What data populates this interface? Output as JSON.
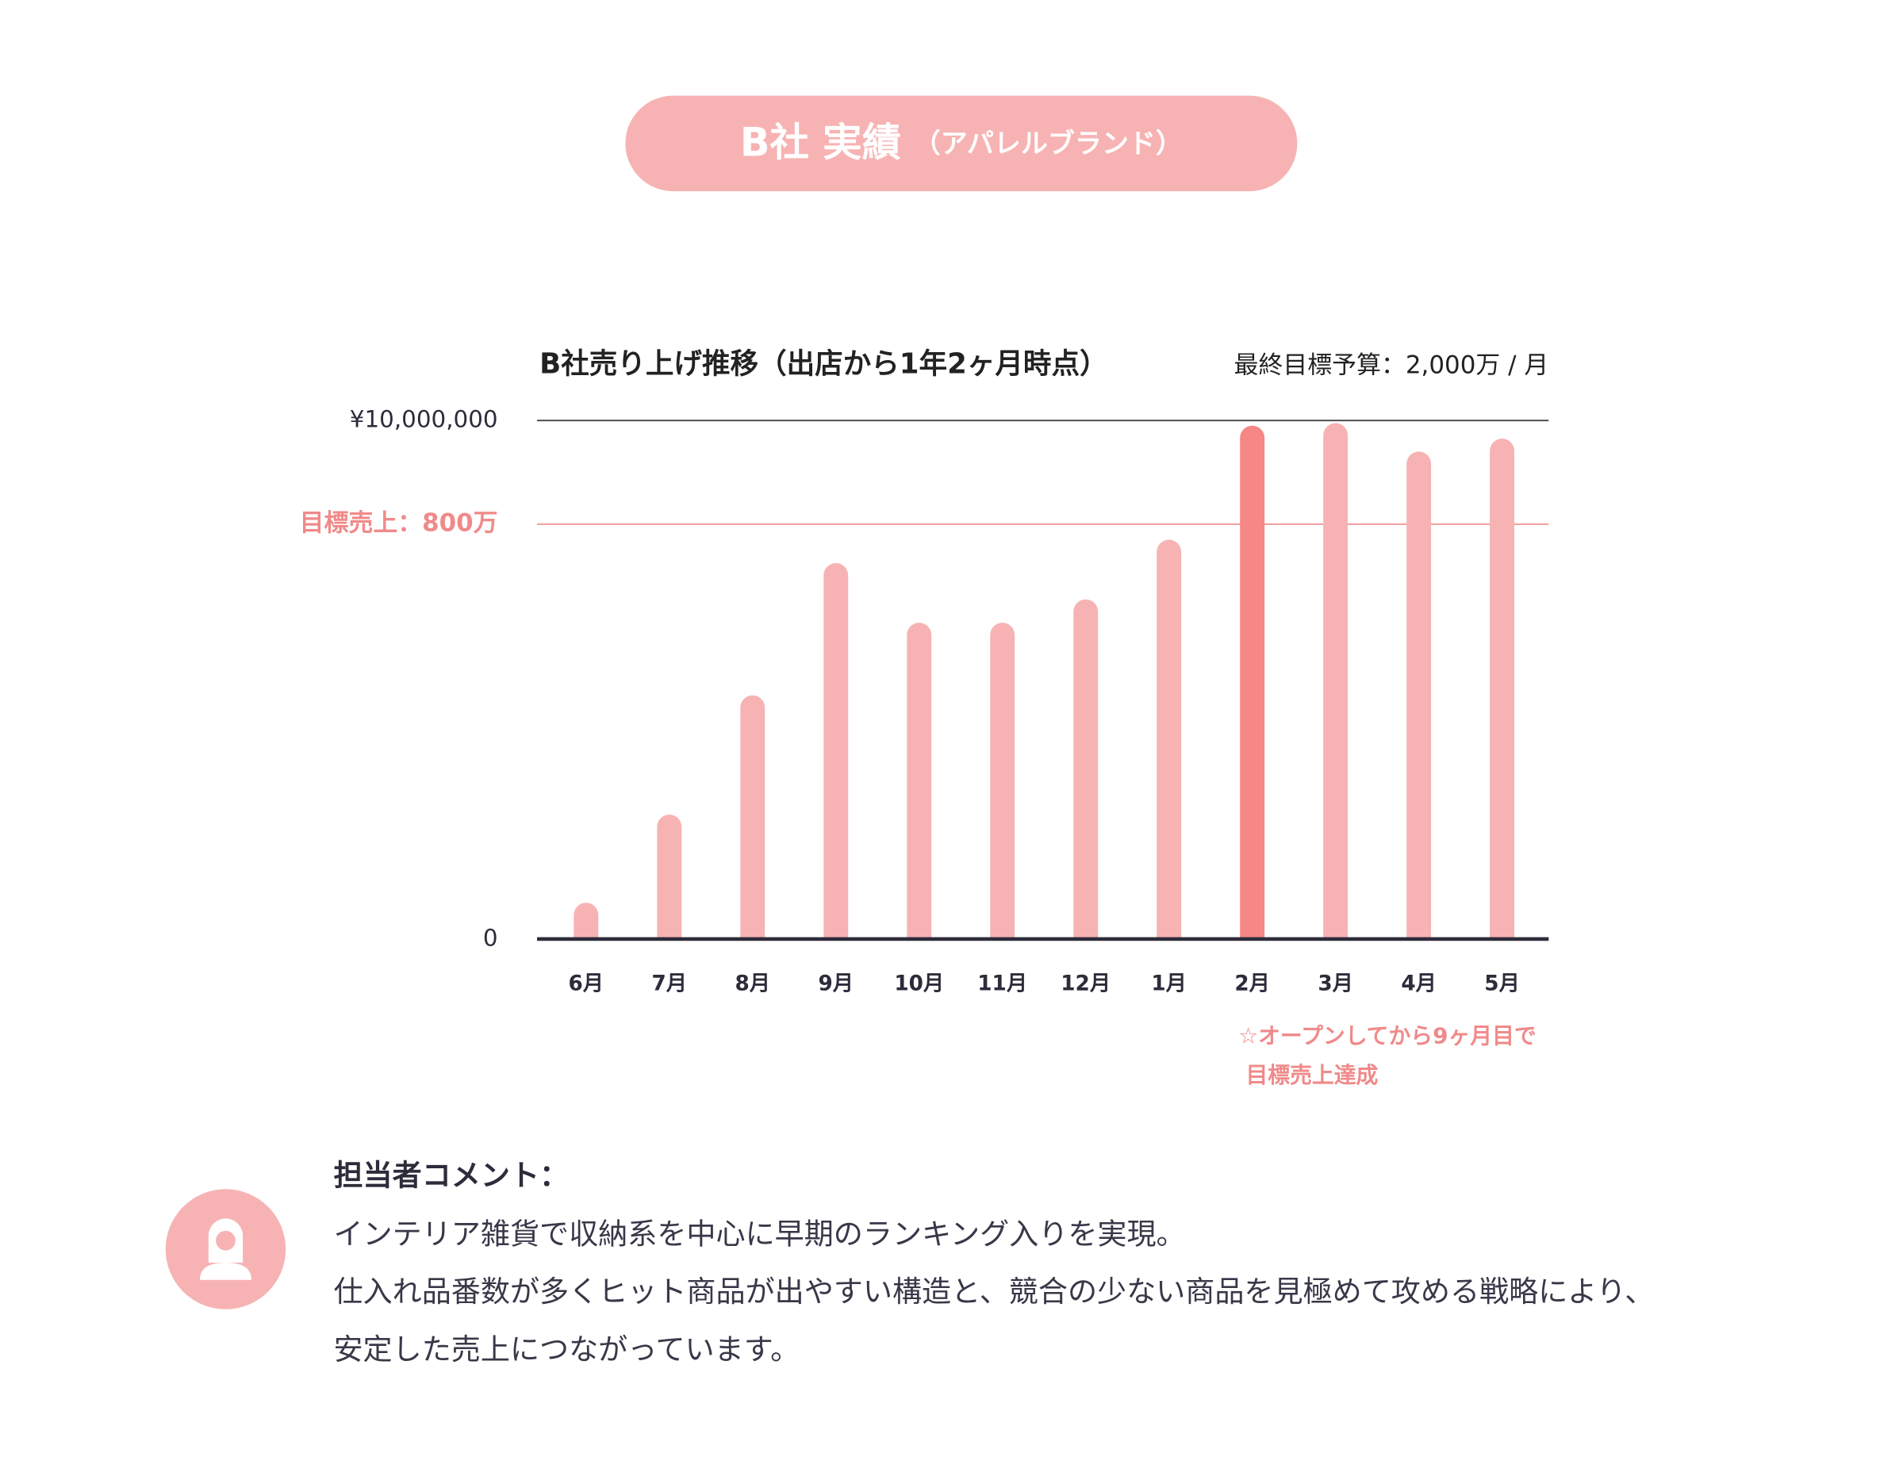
{
  "header": {
    "title": "B社 実績",
    "subtitle": "（アパレルブランド）"
  },
  "chart_data": {
    "type": "bar",
    "title": "B社売り上げ推移（出店から1年2ヶ月時点）",
    "subtitle": "最終目標予算：2,000万 / 月",
    "categories": [
      "6月",
      "7月",
      "8月",
      "9月",
      "10月",
      "11月",
      "12月",
      "1月",
      "2月",
      "3月",
      "4月",
      "5月"
    ],
    "values": [
      700000,
      2400000,
      4700000,
      7250000,
      6100000,
      6100000,
      6550000,
      7700000,
      9900000,
      9950000,
      9400000,
      9650000
    ],
    "colors": [
      "#f7b3b3",
      "#f7b3b3",
      "#f7b3b3",
      "#f7b3b3",
      "#f7b3b3",
      "#f7b3b3",
      "#f7b3b3",
      "#f7b3b3",
      "#f58787",
      "#f7b3b3",
      "#f7b3b3",
      "#f7b3b3"
    ],
    "ylim": [
      0,
      10000000
    ],
    "yticks": [
      0,
      {
        "value": 10000000,
        "label": "¥10,000,000"
      }
    ],
    "target": {
      "value": 8000000,
      "label": "目標売上：800万",
      "color": "#f08a8a"
    },
    "annotation": [
      "☆オープンしてから9ヶ月目で",
      "目標売上達成"
    ]
  },
  "comment": {
    "title": "担当者コメント：",
    "lines": [
      "インテリア雑貨で収納系を中心に早期のランキング入りを実現。",
      "仕入れ品番数が多くヒット商品が出やすい構造と、競合の少ない商品を見極めて攻める戦略により、",
      "安定した売上につながっています。"
    ]
  }
}
